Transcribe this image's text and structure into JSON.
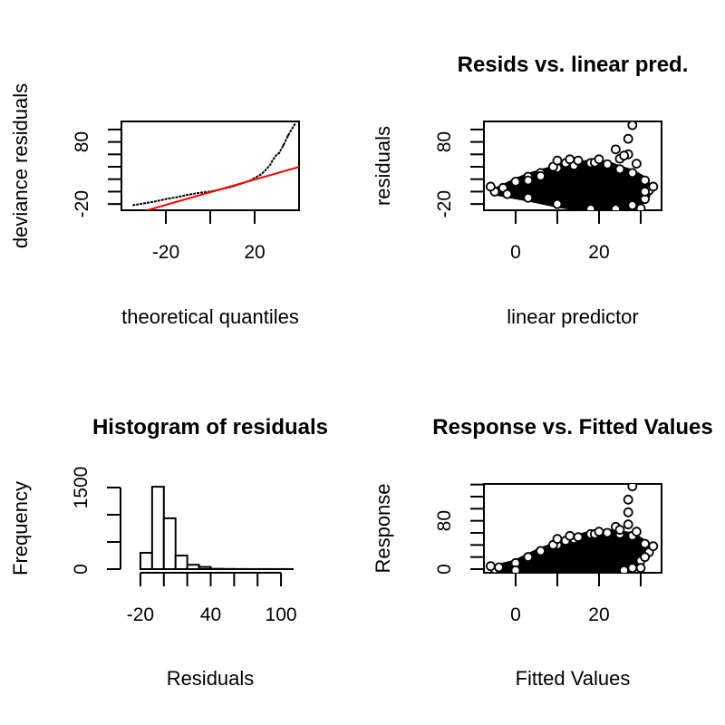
{
  "chart_data": [
    {
      "type": "scatter",
      "title": "",
      "xlabel": "theoretical quantiles",
      "ylabel": "deviance residuals",
      "xlim": [
        -40,
        40
      ],
      "ylim": [
        -30,
        113
      ],
      "x_ticks": [
        -20,
        0,
        20
      ],
      "x_tick_labels": [
        "-20",
        "",
        "20"
      ],
      "y_ticks": [
        -20,
        0,
        20,
        40,
        60,
        80,
        100
      ],
      "y_tick_labels": [
        "-20",
        "",
        "",
        "",
        "",
        "80",
        ""
      ],
      "points": [
        [
          -35,
          -22
        ],
        [
          -30,
          -19
        ],
        [
          -25,
          -16
        ],
        [
          -20,
          -12
        ],
        [
          -15,
          -9
        ],
        [
          -10,
          -5
        ],
        [
          -5,
          -2
        ],
        [
          0,
          0
        ],
        [
          5,
          4
        ],
        [
          10,
          8
        ],
        [
          15,
          14
        ],
        [
          18,
          18
        ],
        [
          20,
          22
        ],
        [
          23,
          28
        ],
        [
          25,
          35
        ],
        [
          27,
          43
        ],
        [
          28,
          50
        ],
        [
          30,
          60
        ],
        [
          31,
          62
        ],
        [
          33,
          75
        ],
        [
          35,
          90
        ],
        [
          38,
          108
        ]
      ],
      "reference_line": {
        "color": "#ff0000",
        "intercept": -1,
        "slope": 1.02
      }
    },
    {
      "type": "scatter",
      "title": "Resids vs. linear pred.",
      "xlabel": "linear predictor",
      "ylabel": "residuals",
      "xlim": [
        -7.6,
        35
      ],
      "ylim": [
        -30,
        113
      ],
      "x_ticks": [
        0,
        10,
        20,
        30
      ],
      "x_tick_labels": [
        "0",
        "",
        "20",
        ""
      ],
      "y_ticks": [
        -20,
        0,
        20,
        40,
        60,
        80,
        100
      ],
      "y_tick_labels": [
        "-20",
        "",
        "",
        "",
        "",
        "80",
        ""
      ],
      "cloud": [
        [
          -5,
          0
        ],
        [
          -3,
          6
        ],
        [
          0,
          16
        ],
        [
          3,
          24
        ],
        [
          6,
          30
        ],
        [
          10,
          38
        ],
        [
          14,
          42
        ],
        [
          18,
          46
        ],
        [
          22,
          44
        ],
        [
          25,
          36
        ],
        [
          28,
          30
        ],
        [
          31,
          18
        ],
        [
          32,
          2
        ],
        [
          31,
          -12
        ],
        [
          28,
          -22
        ],
        [
          24,
          -28
        ],
        [
          18,
          -28
        ],
        [
          10,
          -20
        ],
        [
          3,
          -10
        ],
        [
          -2,
          -4
        ]
      ],
      "points": [
        [
          -6,
          8
        ],
        [
          3,
          18
        ],
        [
          6,
          25
        ],
        [
          9,
          40
        ],
        [
          10,
          50
        ],
        [
          12,
          46
        ],
        [
          13,
          52
        ],
        [
          15,
          50
        ],
        [
          19,
          47
        ],
        [
          20,
          52
        ],
        [
          24,
          68
        ],
        [
          25,
          53
        ],
        [
          27,
          85
        ],
        [
          27,
          60
        ],
        [
          28,
          107
        ],
        [
          26,
          58
        ],
        [
          29,
          45
        ],
        [
          33,
          8
        ],
        [
          30,
          -27
        ],
        [
          31,
          0
        ]
      ]
    },
    {
      "type": "bar",
      "title": "Histogram of residuals",
      "xlabel": "Residuals",
      "ylabel": "Frequency",
      "bin_edges": [
        -30,
        -20,
        -10,
        0,
        10,
        20,
        30,
        40,
        50,
        60,
        70,
        80,
        90,
        100,
        110
      ],
      "values": [
        0,
        300,
        1515,
        935,
        250,
        80,
        40,
        6,
        3,
        2,
        1,
        1,
        1,
        1
      ],
      "xlim": [
        -30,
        110
      ],
      "ylim": [
        0,
        1500
      ],
      "x_ticks": [
        -20,
        0,
        20,
        40,
        60,
        80,
        100
      ],
      "x_tick_labels": [
        "-20",
        "",
        "",
        "40",
        "",
        "",
        "100"
      ],
      "y_ticks": [
        0,
        500,
        1000,
        1500
      ],
      "y_tick_labels": [
        "0",
        "",
        "",
        "1500"
      ]
    },
    {
      "type": "scatter",
      "title": "Response vs. Fitted Values",
      "xlabel": "Fitted Values",
      "ylabel": "Response",
      "xlim": [
        -7.6,
        35
      ],
      "ylim": [
        -6,
        141
      ],
      "x_ticks": [
        0,
        10,
        20,
        30
      ],
      "x_tick_labels": [
        "0",
        "",
        "20",
        ""
      ],
      "y_ticks": [
        0,
        20,
        40,
        60,
        80,
        100,
        120,
        140
      ],
      "y_tick_labels": [
        "0",
        "",
        "",
        "",
        "80",
        "",
        "",
        ""
      ],
      "cloud": [
        [
          -5,
          0
        ],
        [
          -4,
          3
        ],
        [
          0,
          10
        ],
        [
          3,
          20
        ],
        [
          6,
          30
        ],
        [
          10,
          40
        ],
        [
          14,
          50
        ],
        [
          18,
          58
        ],
        [
          22,
          60
        ],
        [
          25,
          58
        ],
        [
          28,
          55
        ],
        [
          31,
          42
        ],
        [
          32,
          28
        ],
        [
          30,
          14
        ],
        [
          28,
          2
        ],
        [
          26,
          -2
        ],
        [
          0,
          -2
        ]
      ],
      "points": [
        [
          -6,
          5
        ],
        [
          3,
          20
        ],
        [
          6,
          30
        ],
        [
          9,
          40
        ],
        [
          10,
          50
        ],
        [
          12,
          47
        ],
        [
          13,
          55
        ],
        [
          15,
          53
        ],
        [
          19,
          58
        ],
        [
          20,
          62
        ],
        [
          24,
          70
        ],
        [
          25,
          65
        ],
        [
          27,
          94
        ],
        [
          27,
          74
        ],
        [
          28,
          137
        ],
        [
          27,
          115
        ],
        [
          29,
          62
        ],
        [
          33,
          38
        ],
        [
          30,
          2
        ],
        [
          31,
          20
        ]
      ]
    }
  ]
}
